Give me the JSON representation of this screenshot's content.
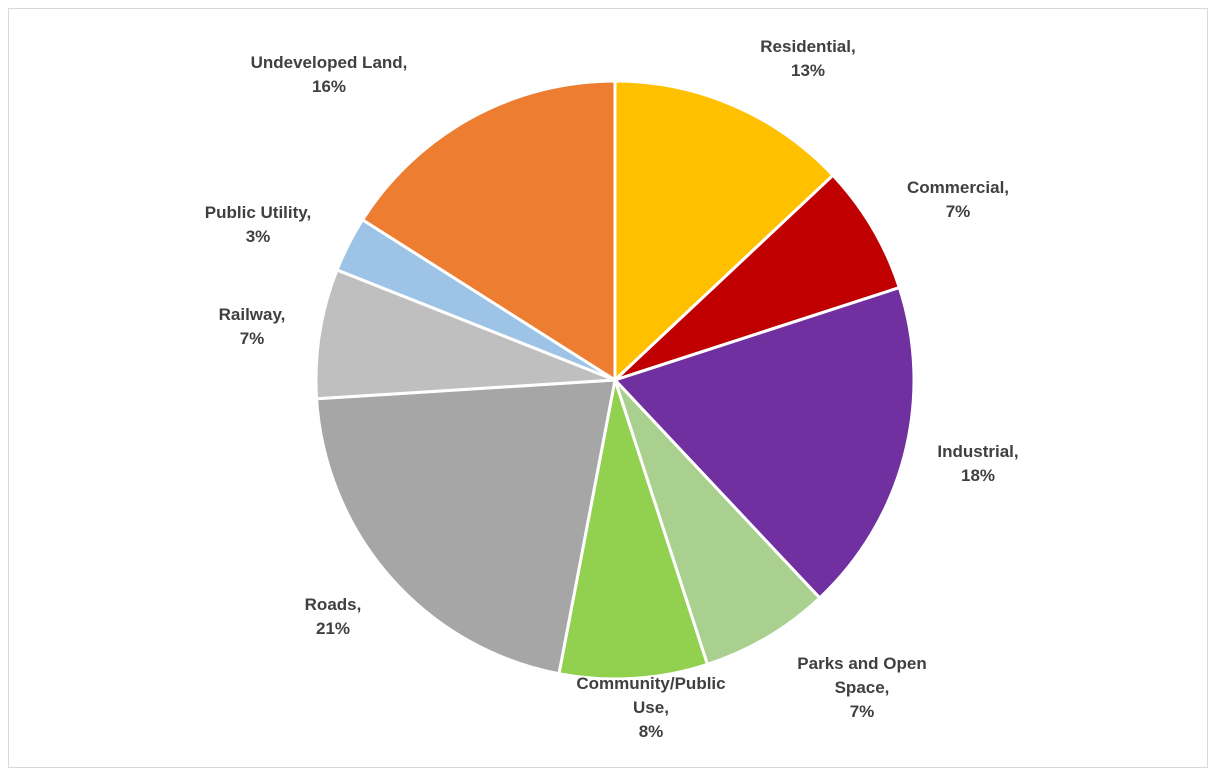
{
  "chart_data": {
    "type": "pie",
    "title": "",
    "start_angle_deg": 0,
    "direction": "clockwise",
    "legend": "none",
    "slices": [
      {
        "label": "Residential",
        "value": 13,
        "value_label": "13%",
        "color": "#FFC000"
      },
      {
        "label": "Commercial",
        "value": 7,
        "value_label": "7%",
        "color": "#C00000"
      },
      {
        "label": "Industrial",
        "value": 18,
        "value_label": "18%",
        "color": "#7030A0"
      },
      {
        "label": "Parks and Open Space",
        "value": 7,
        "value_label": "7%",
        "color": "#A9D08E"
      },
      {
        "label": "Community/Public Use",
        "value": 8,
        "value_label": "8%",
        "color": "#92D050"
      },
      {
        "label": "Roads",
        "value": 21,
        "value_label": "21%",
        "color": "#A6A6A6"
      },
      {
        "label": "Railway",
        "value": 7,
        "value_label": "7%",
        "color": "#BFBFBF"
      },
      {
        "label": "Public Utility",
        "value": 3,
        "value_label": "3%",
        "color": "#9DC3E6"
      },
      {
        "label": "Undeveloped Land",
        "value": 16,
        "value_label": "16%",
        "color": "#ED7D31"
      }
    ]
  }
}
